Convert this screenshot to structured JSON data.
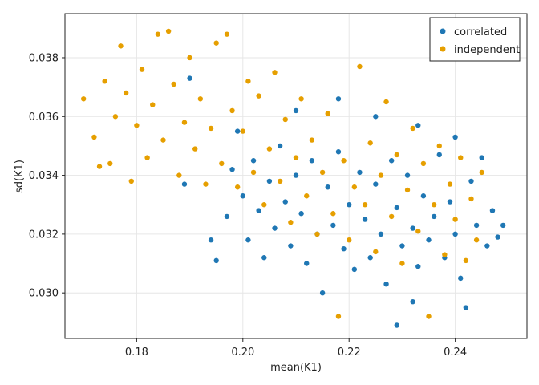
{
  "chart_data": {
    "type": "scatter",
    "xlabel": "mean(K1)",
    "ylabel": "sd(K1)",
    "xlim": [
      0.1665,
      0.2535
    ],
    "ylim": [
      0.02845,
      0.0395
    ],
    "x_ticks": [
      0.18,
      0.2,
      0.22,
      0.24
    ],
    "x_tick_labels": [
      "0.18",
      "0.20",
      "0.22",
      "0.24"
    ],
    "y_ticks": [
      0.03,
      0.032,
      0.034,
      0.036,
      0.038
    ],
    "y_tick_labels": [
      "0.030",
      "0.032",
      "0.034",
      "0.036",
      "0.038"
    ],
    "grid": true,
    "legend_position": "top-right",
    "point_estimate_count_per_series": 800,
    "series": [
      {
        "name": "correlated",
        "color": "#1f77b4",
        "points": [
          [
            0.189,
            0.0337
          ],
          [
            0.19,
            0.0373
          ],
          [
            0.194,
            0.0318
          ],
          [
            0.195,
            0.0311
          ],
          [
            0.197,
            0.0326
          ],
          [
            0.198,
            0.0342
          ],
          [
            0.199,
            0.0355
          ],
          [
            0.2,
            0.0333
          ],
          [
            0.201,
            0.0318
          ],
          [
            0.202,
            0.0345
          ],
          [
            0.203,
            0.0328
          ],
          [
            0.204,
            0.0312
          ],
          [
            0.205,
            0.0338
          ],
          [
            0.206,
            0.0322
          ],
          [
            0.207,
            0.035
          ],
          [
            0.208,
            0.0331
          ],
          [
            0.209,
            0.0316
          ],
          [
            0.21,
            0.034
          ],
          [
            0.211,
            0.0327
          ],
          [
            0.212,
            0.031
          ],
          [
            0.213,
            0.0345
          ],
          [
            0.214,
            0.032
          ],
          [
            0.215,
            0.03
          ],
          [
            0.216,
            0.0336
          ],
          [
            0.217,
            0.0323
          ],
          [
            0.218,
            0.0348
          ],
          [
            0.219,
            0.0315
          ],
          [
            0.22,
            0.033
          ],
          [
            0.221,
            0.0308
          ],
          [
            0.222,
            0.0341
          ],
          [
            0.223,
            0.0325
          ],
          [
            0.224,
            0.0312
          ],
          [
            0.225,
            0.0337
          ],
          [
            0.226,
            0.032
          ],
          [
            0.227,
            0.0303
          ],
          [
            0.228,
            0.0345
          ],
          [
            0.229,
            0.0329
          ],
          [
            0.23,
            0.0316
          ],
          [
            0.231,
            0.034
          ],
          [
            0.232,
            0.0322
          ],
          [
            0.233,
            0.0309
          ],
          [
            0.234,
            0.0333
          ],
          [
            0.235,
            0.0318
          ],
          [
            0.236,
            0.0326
          ],
          [
            0.237,
            0.0347
          ],
          [
            0.238,
            0.0312
          ],
          [
            0.239,
            0.0331
          ],
          [
            0.24,
            0.032
          ],
          [
            0.241,
            0.0305
          ],
          [
            0.242,
            0.0295
          ],
          [
            0.243,
            0.0338
          ],
          [
            0.244,
            0.0323
          ],
          [
            0.245,
            0.0346
          ],
          [
            0.246,
            0.0316
          ],
          [
            0.247,
            0.0328
          ],
          [
            0.248,
            0.0319
          ],
          [
            0.249,
            0.0323
          ],
          [
            0.229,
            0.0289
          ],
          [
            0.232,
            0.0297
          ],
          [
            0.225,
            0.036
          ],
          [
            0.21,
            0.0362
          ],
          [
            0.24,
            0.0353
          ],
          [
            0.233,
            0.0357
          ],
          [
            0.218,
            0.0366
          ]
        ]
      },
      {
        "name": "independent",
        "color": "#e69f00",
        "points": [
          [
            0.17,
            0.0366
          ],
          [
            0.172,
            0.0353
          ],
          [
            0.173,
            0.0343
          ],
          [
            0.174,
            0.0372
          ],
          [
            0.175,
            0.0344
          ],
          [
            0.176,
            0.036
          ],
          [
            0.177,
            0.0384
          ],
          [
            0.178,
            0.0368
          ],
          [
            0.179,
            0.0338
          ],
          [
            0.18,
            0.0357
          ],
          [
            0.181,
            0.0376
          ],
          [
            0.182,
            0.0346
          ],
          [
            0.183,
            0.0364
          ],
          [
            0.184,
            0.0388
          ],
          [
            0.185,
            0.0352
          ],
          [
            0.186,
            0.0389
          ],
          [
            0.187,
            0.0371
          ],
          [
            0.188,
            0.034
          ],
          [
            0.189,
            0.0358
          ],
          [
            0.19,
            0.038
          ],
          [
            0.191,
            0.0349
          ],
          [
            0.192,
            0.0366
          ],
          [
            0.193,
            0.0337
          ],
          [
            0.194,
            0.0356
          ],
          [
            0.195,
            0.0385
          ],
          [
            0.196,
            0.0344
          ],
          [
            0.197,
            0.0388
          ],
          [
            0.198,
            0.0362
          ],
          [
            0.199,
            0.0336
          ],
          [
            0.2,
            0.0355
          ],
          [
            0.201,
            0.0372
          ],
          [
            0.202,
            0.0341
          ],
          [
            0.203,
            0.0367
          ],
          [
            0.204,
            0.033
          ],
          [
            0.205,
            0.0349
          ],
          [
            0.206,
            0.0375
          ],
          [
            0.207,
            0.0338
          ],
          [
            0.208,
            0.0359
          ],
          [
            0.209,
            0.0324
          ],
          [
            0.21,
            0.0346
          ],
          [
            0.211,
            0.0366
          ],
          [
            0.212,
            0.0333
          ],
          [
            0.213,
            0.0352
          ],
          [
            0.214,
            0.032
          ],
          [
            0.215,
            0.0341
          ],
          [
            0.216,
            0.0361
          ],
          [
            0.217,
            0.0327
          ],
          [
            0.218,
            0.0292
          ],
          [
            0.219,
            0.0345
          ],
          [
            0.22,
            0.0318
          ],
          [
            0.221,
            0.0336
          ],
          [
            0.222,
            0.0377
          ],
          [
            0.223,
            0.033
          ],
          [
            0.224,
            0.0351
          ],
          [
            0.225,
            0.0314
          ],
          [
            0.226,
            0.034
          ],
          [
            0.227,
            0.0365
          ],
          [
            0.228,
            0.0326
          ],
          [
            0.229,
            0.0347
          ],
          [
            0.23,
            0.031
          ],
          [
            0.231,
            0.0335
          ],
          [
            0.232,
            0.0356
          ],
          [
            0.233,
            0.0321
          ],
          [
            0.234,
            0.0344
          ],
          [
            0.235,
            0.0292
          ],
          [
            0.236,
            0.033
          ],
          [
            0.237,
            0.035
          ],
          [
            0.238,
            0.0313
          ],
          [
            0.239,
            0.0337
          ],
          [
            0.24,
            0.0325
          ],
          [
            0.241,
            0.0346
          ],
          [
            0.242,
            0.0311
          ],
          [
            0.243,
            0.0332
          ],
          [
            0.244,
            0.0318
          ],
          [
            0.245,
            0.0341
          ]
        ]
      }
    ]
  }
}
